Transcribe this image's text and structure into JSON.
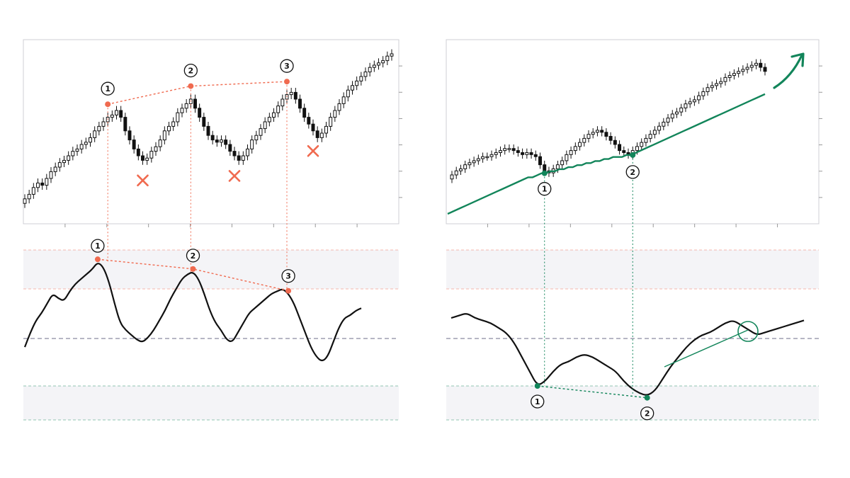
{
  "colors": {
    "bearish": "#f06a4f",
    "bullish": "#12855a",
    "price_line": "#111111",
    "band": "#f4f4f7",
    "midline": "#8a8aa0",
    "axis": "#cfcfd4"
  },
  "icons": [
    "cross-mark-icon",
    "up-arrow-icon"
  ],
  "chart_data": [
    {
      "type": "candlestick",
      "panel": "top-left",
      "pattern": "bearish divergence",
      "points": 85,
      "close": [
        36,
        38,
        41,
        43,
        42,
        45,
        48,
        50,
        52,
        53,
        55,
        57,
        58,
        60,
        61,
        63,
        66,
        68,
        70,
        72,
        73,
        75,
        72,
        66,
        62,
        58,
        55,
        53,
        54,
        57,
        59,
        62,
        66,
        68,
        70,
        74,
        76,
        78,
        80,
        76,
        72,
        68,
        64,
        62,
        61,
        62,
        60,
        57,
        55,
        53,
        55,
        58,
        62,
        64,
        67,
        70,
        72,
        74,
        77,
        80,
        82,
        83,
        80,
        76,
        72,
        69,
        66,
        63,
        65,
        68,
        72,
        75,
        78,
        81,
        84,
        86,
        88,
        90,
        92,
        94,
        95,
        96,
        97,
        99,
        100
      ],
      "peaks": [
        {
          "label": "1",
          "index": 19
        },
        {
          "label": "2",
          "index": 38
        },
        {
          "label": "3",
          "index": 60
        }
      ],
      "failed_lows": [
        {
          "label": "×",
          "index": 27
        },
        {
          "label": "×",
          "index": 48
        },
        {
          "label": "×",
          "index": 66
        }
      ]
    },
    {
      "type": "candlestick",
      "panel": "top-right",
      "pattern": "bullish divergence",
      "points": 72,
      "close": [
        45,
        47,
        48,
        50,
        51,
        52,
        53,
        54,
        54,
        55,
        56,
        57,
        58,
        58,
        57,
        56,
        55,
        56,
        55,
        54,
        50,
        47,
        46,
        48,
        50,
        52,
        55,
        57,
        59,
        61,
        63,
        65,
        66,
        67,
        66,
        64,
        62,
        60,
        57,
        56,
        55,
        57,
        59,
        61,
        63,
        65,
        67,
        69,
        71,
        73,
        75,
        76,
        78,
        80,
        81,
        82,
        84,
        86,
        88,
        89,
        90,
        91,
        93,
        94,
        95,
        96,
        97,
        98,
        99,
        100,
        98,
        96
      ],
      "moving_average": [
        30,
        31,
        32,
        33,
        34,
        35,
        36,
        37,
        38,
        39,
        40,
        41,
        42,
        43,
        44,
        45,
        46,
        47,
        48,
        48,
        49,
        50,
        50,
        51,
        51,
        52,
        52,
        53,
        53,
        54,
        54,
        55,
        55,
        56,
        56,
        57,
        57,
        58,
        58,
        58,
        59,
        59,
        60,
        61,
        62,
        63,
        64,
        65,
        66,
        67,
        68,
        69,
        70,
        71,
        72,
        73,
        74,
        75,
        76,
        77,
        78,
        79,
        80,
        81,
        82,
        83,
        84,
        85,
        86,
        87,
        88,
        89
      ],
      "lows": [
        {
          "label": "1",
          "index": 21
        },
        {
          "label": "2",
          "index": 41
        }
      ]
    },
    {
      "type": "line",
      "panel": "bottom-left",
      "band_levels": [
        70,
        30
      ],
      "midline": 50,
      "series": [
        {
          "values": [
            50,
            56,
            61,
            64,
            68,
            72,
            70,
            69,
            73,
            76,
            78,
            80,
            82,
            85,
            83,
            77,
            68,
            60,
            57,
            55,
            53,
            52,
            54,
            57,
            61,
            65,
            70,
            74,
            78,
            80,
            81,
            78,
            72,
            65,
            60,
            57,
            53,
            52,
            56,
            60,
            64,
            66,
            68,
            70,
            72,
            73,
            74,
            72,
            68,
            62,
            56,
            50,
            46,
            44,
            46,
            52,
            58,
            62,
            63,
            65,
            66
          ]
        }
      ],
      "peaks": [
        {
          "label": "1",
          "index": 13
        },
        {
          "label": "2",
          "index": 30
        },
        {
          "label": "3",
          "index": 47
        }
      ]
    },
    {
      "type": "line",
      "panel": "bottom-right",
      "band_levels": [
        70,
        30
      ],
      "midline": 50,
      "series": [
        {
          "values": [
            62,
            63,
            64,
            62,
            61,
            60,
            58,
            56,
            52,
            46,
            40,
            34,
            36,
            40,
            43,
            44,
            46,
            47,
            46,
            44,
            42,
            40,
            36,
            33,
            31,
            30,
            32,
            37,
            42,
            46,
            50,
            53,
            55,
            56,
            58,
            60,
            61,
            59,
            57,
            55,
            56,
            57,
            58,
            59,
            60,
            61
          ]
        }
      ],
      "lows": [
        {
          "label": "1",
          "index": 11
        },
        {
          "label": "2",
          "index": 25
        }
      ]
    }
  ]
}
